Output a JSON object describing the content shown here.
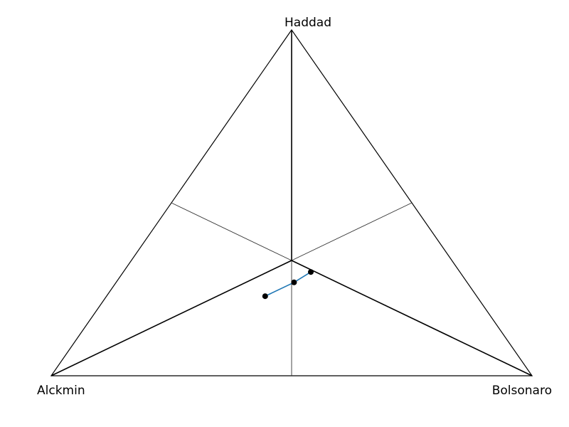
{
  "vertices": {
    "top": "Haddad",
    "left": "Alckmin",
    "right": "Bolsonaro"
  },
  "style": {
    "triangle_color": "#000000",
    "median_color": "#333333",
    "series_color": "#1f77b4",
    "point_color": "#000000"
  },
  "chart_data": {
    "type": "ternary",
    "components": [
      "Haddad",
      "Alckmin",
      "Bolsonaro"
    ],
    "series": [
      {
        "points": [
          {
            "Haddad": 0.23,
            "Alckmin": 0.44,
            "Bolsonaro": 0.33
          },
          {
            "Haddad": 0.3,
            "Alckmin": 0.31,
            "Bolsonaro": 0.39
          },
          {
            "Haddad": 0.27,
            "Alckmin": 0.36,
            "Bolsonaro": 0.37
          }
        ]
      }
    ]
  }
}
